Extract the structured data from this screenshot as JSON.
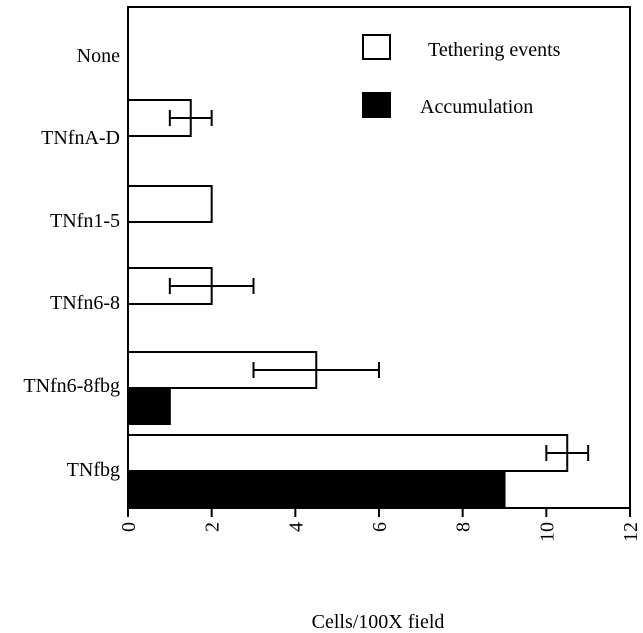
{
  "chart_data": {
    "type": "bar",
    "orientation": "horizontal",
    "xlabel": "Cells/100X field",
    "ylabel": "",
    "xlim": [
      0,
      12
    ],
    "xticks": [
      "0",
      "2",
      "4",
      "6",
      "8",
      "10",
      "12"
    ],
    "categories": [
      "None",
      "TNfnA-D",
      "TNfn1-5",
      "TNfn6-8",
      "TNfn6-8fbg",
      "TNfbg"
    ],
    "series": [
      {
        "name": "Tethering events",
        "fill": "#ffffff",
        "values": [
          0,
          1.5,
          2,
          2,
          4.5,
          10.5
        ],
        "error": [
          null,
          0.5,
          null,
          1,
          1.5,
          0.5
        ]
      },
      {
        "name": "Accumulation",
        "fill": "#000000",
        "values": [
          0,
          0,
          0,
          0,
          1,
          9
        ],
        "error": [
          null,
          null,
          null,
          null,
          null,
          null
        ]
      }
    ],
    "legend": "top-right",
    "grid": false
  }
}
